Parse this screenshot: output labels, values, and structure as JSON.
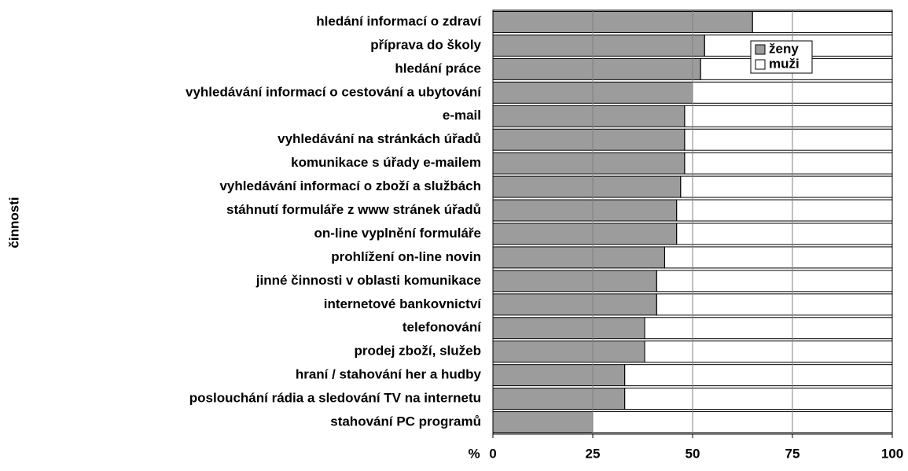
{
  "chart_data": {
    "type": "stacked_barh",
    "categories": [
      "hledání informací o zdraví",
      "příprava do školy",
      "hledání práce",
      "vyhledávání informací o cestování a ubytování",
      "e-mail",
      "vyhledávání na stránkách úřadů",
      "komunikace s úřady e-mailem",
      "vyhledávání informací o zboží a službách",
      "stáhnutí formuláře z www stránek úřadů",
      "on-line vyplnění formuláře",
      "prohlížení on-line novin",
      "jinné činnosti v oblasti komunikace",
      "internetové bankovnictví",
      "telefonování",
      "prodej zboží, služeb",
      "hraní / stahování  her a hudby",
      "poslouchání rádia a sledování TV na internetu",
      "stahování PC programů"
    ],
    "series": [
      {
        "name": "ženy",
        "color": "#9c9c9c",
        "values": [
          65,
          53,
          52,
          50,
          48,
          48,
          48,
          47,
          46,
          46,
          43,
          41,
          41,
          38,
          38,
          33,
          33,
          25
        ]
      },
      {
        "name": "muži",
        "color": "#ffffff",
        "values": [
          35,
          47,
          48,
          50,
          52,
          52,
          52,
          53,
          54,
          54,
          57,
          59,
          59,
          62,
          62,
          67,
          67,
          75
        ]
      }
    ],
    "ylabel": "činnosti",
    "xlabel": "%",
    "xlim": [
      0,
      100
    ],
    "xticks": [
      0,
      25,
      50,
      75,
      100
    ],
    "grid": true,
    "legend": "top-right"
  }
}
